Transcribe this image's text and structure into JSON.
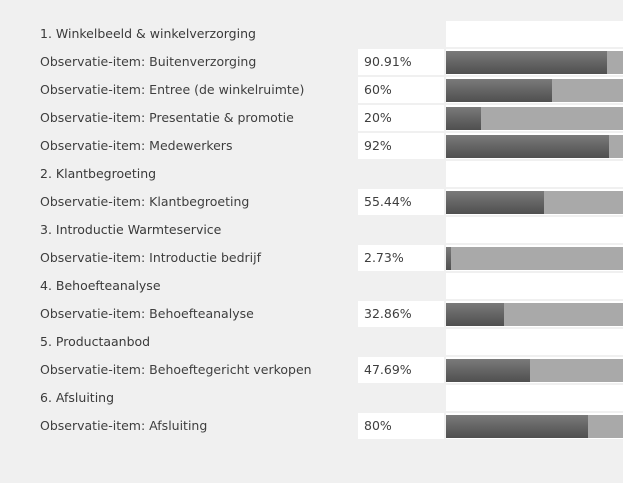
{
  "rows": [
    {
      "type": "section",
      "label": "1. Winkelbeeld & winkelverzorging"
    },
    {
      "type": "item",
      "label": "Observatie-item: Buitenverzorging",
      "pct": "90.91%",
      "fraction": 0.9091
    },
    {
      "type": "item",
      "label": "Observatie-item: Entree (de winkelruimte)",
      "pct": "60%",
      "fraction": 0.6
    },
    {
      "type": "item",
      "label": "Observatie-item: Presentatie & promotie",
      "pct": "20%",
      "fraction": 0.2
    },
    {
      "type": "item",
      "label": "Observatie-item: Medewerkers",
      "pct": "92%",
      "fraction": 0.92
    },
    {
      "type": "section",
      "label": "2. Klantbegroeting"
    },
    {
      "type": "item",
      "label": "Observatie-item: Klantbegroeting",
      "pct": "55.44%",
      "fraction": 0.5544
    },
    {
      "type": "section",
      "label": "3. Introductie Warmteservice"
    },
    {
      "type": "item",
      "label": "Observatie-item: Introductie bedrijf",
      "pct": "2.73%",
      "fraction": 0.0273
    },
    {
      "type": "section",
      "label": "4. Behoefteanalyse"
    },
    {
      "type": "item",
      "label": "Observatie-item: Behoefteanalyse",
      "pct": "32.86%",
      "fraction": 0.3286
    },
    {
      "type": "section",
      "label": "5. Productaanbod"
    },
    {
      "type": "item",
      "label": "Observatie-item: Behoeftegericht verkopen",
      "pct": "47.69%",
      "fraction": 0.4769
    },
    {
      "type": "section",
      "label": "6. Afsluiting"
    },
    {
      "type": "item",
      "label": "Observatie-item: Afsluiting",
      "pct": "80%",
      "fraction": 0.8
    }
  ],
  "colors": {
    "background": "#f0f0f0",
    "cell": "#ffffff",
    "bar_track": "#a9a9a9",
    "bar_fill_top": "#7a7a7a",
    "bar_fill_bottom": "#4f4f4f",
    "text": "#3e3e3e"
  }
}
